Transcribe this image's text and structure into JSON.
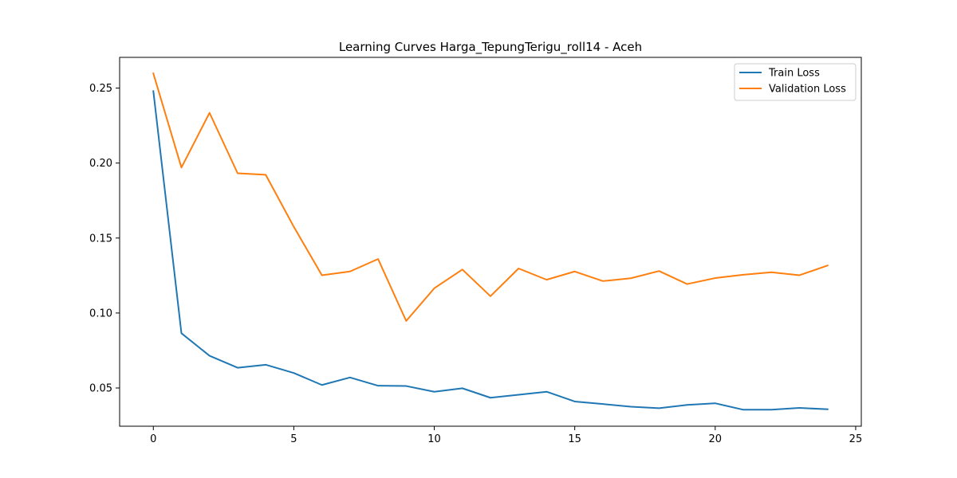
{
  "chart_data": {
    "type": "line",
    "title": "Learning Curves Harga_TepungTerigu_roll14 - Aceh",
    "xlabel": "",
    "ylabel": "",
    "xlim": [
      -1.2,
      25.2
    ],
    "ylim": [
      0.0245,
      0.2705
    ],
    "xticks": [
      0,
      5,
      10,
      15,
      20,
      25
    ],
    "xtick_labels": [
      "0",
      "5",
      "10",
      "15",
      "20",
      "25"
    ],
    "yticks": [
      0.05,
      0.1,
      0.15,
      0.2,
      0.25
    ],
    "ytick_labels": [
      "0.05",
      "0.10",
      "0.15",
      "0.20",
      "0.25"
    ],
    "grid": false,
    "legend_position": "top-right",
    "x": [
      0,
      1,
      2,
      3,
      4,
      5,
      6,
      7,
      8,
      9,
      10,
      11,
      12,
      13,
      14,
      15,
      16,
      17,
      18,
      19,
      20,
      21,
      22,
      23,
      24
    ],
    "series": [
      {
        "name": "Train Loss",
        "color": "#1f77b4",
        "values": [
          0.248,
          0.0865,
          0.0715,
          0.0635,
          0.0655,
          0.06,
          0.052,
          0.057,
          0.0515,
          0.0513,
          0.0475,
          0.0498,
          0.0435,
          0.0455,
          0.0475,
          0.041,
          0.0393,
          0.0375,
          0.0365,
          0.0387,
          0.0398,
          0.0355,
          0.0355,
          0.0367,
          0.0358
        ]
      },
      {
        "name": "Validation Loss",
        "color": "#ff7f0e",
        "values": [
          0.2598,
          0.197,
          0.2335,
          0.1932,
          0.1922,
          0.1575,
          0.1252,
          0.1277,
          0.136,
          0.0947,
          0.1165,
          0.129,
          0.1112,
          0.1297,
          0.1222,
          0.1277,
          0.1213,
          0.1232,
          0.128,
          0.1193,
          0.1233,
          0.1255,
          0.1272,
          0.1252,
          0.1317
        ]
      }
    ]
  }
}
